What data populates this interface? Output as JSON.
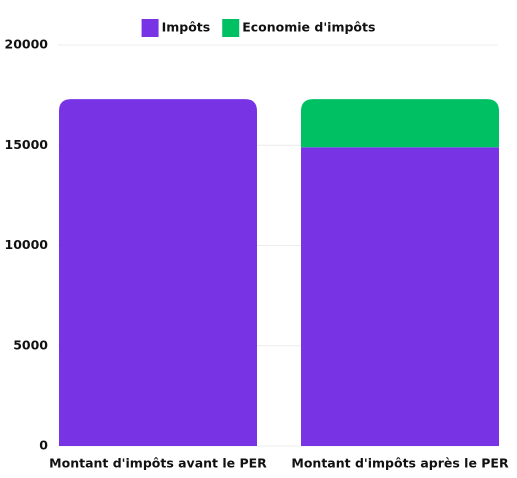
{
  "chart_data": {
    "type": "stacked_bar",
    "categories": [
      "Montant d'impôts avant le PER",
      "Montant d'impôts après le PER"
    ],
    "series": [
      {
        "name": "Impôts",
        "color": "#7834e4",
        "values": [
          17300,
          14900
        ]
      },
      {
        "name": "Economie d'impôts",
        "color": "#00c064",
        "values": [
          0,
          2400
        ]
      }
    ],
    "ylim": [
      0,
      20000
    ],
    "yticks": [
      0,
      5000,
      10000,
      15000,
      20000
    ],
    "grid": true,
    "legend": "top"
  }
}
